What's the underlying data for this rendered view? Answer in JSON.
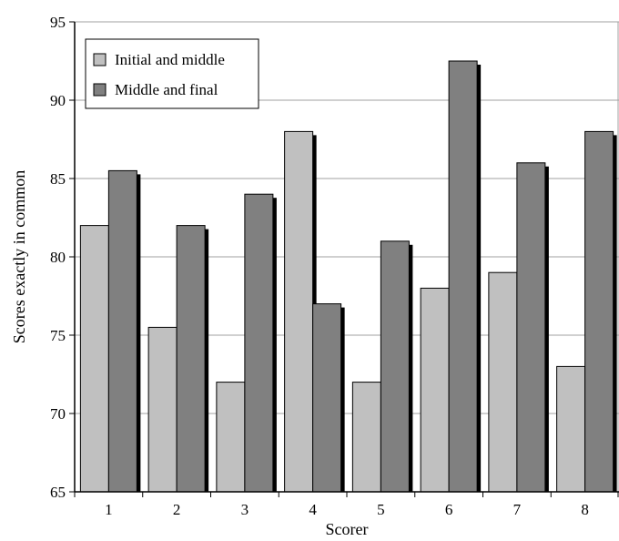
{
  "chart_data": {
    "type": "bar",
    "title": "",
    "xlabel": "Scorer",
    "ylabel": "Scores exactly in common",
    "categories": [
      "1",
      "2",
      "3",
      "4",
      "5",
      "6",
      "7",
      "8"
    ],
    "series": [
      {
        "name": "Initial and middle",
        "values": [
          82,
          75.5,
          72,
          88,
          72,
          78,
          79,
          73
        ],
        "color": "#c0c0c0"
      },
      {
        "name": "Middle and final",
        "values": [
          85.5,
          82,
          84,
          77,
          81,
          92.5,
          86,
          88
        ],
        "color": "#808080"
      }
    ],
    "ylim": [
      65,
      95
    ],
    "yticks": [
      "65",
      "70",
      "75",
      "80",
      "85",
      "90",
      "95"
    ],
    "grid": true,
    "legend_position": "top-left",
    "shadow_color": "#000000",
    "grid_color": "#a0a0a0"
  }
}
